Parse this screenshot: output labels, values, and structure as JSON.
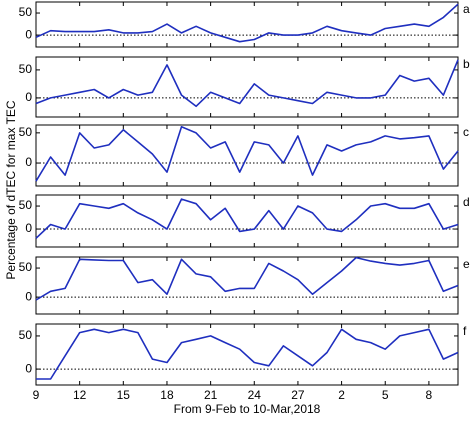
{
  "chart_data": [
    {
      "type": "line",
      "label": "a",
      "ylabel": "Percentage of dTEC for max TEC",
      "color": "#1f2fbf",
      "ylim": [
        -27,
        75
      ],
      "yticks": [
        0,
        50
      ],
      "values": [
        -5,
        10,
        8,
        8,
        8,
        12,
        5,
        5,
        8,
        25,
        5,
        20,
        5,
        -5,
        -15,
        -10,
        5,
        0,
        0,
        5,
        20,
        10,
        5,
        0,
        15,
        20,
        25,
        20,
        40,
        70
      ]
    },
    {
      "type": "line",
      "label": "b",
      "color": "#1f2fbf",
      "ylim": [
        -34,
        73
      ],
      "yticks": [
        0,
        50
      ],
      "values": [
        -10,
        0,
        5,
        10,
        15,
        0,
        15,
        5,
        10,
        59,
        5,
        -15,
        10,
        0,
        -10,
        25,
        5,
        0,
        -5,
        -10,
        10,
        5,
        0,
        0,
        5,
        40,
        30,
        35,
        5,
        68
      ]
    },
    {
      "type": "line",
      "label": "c",
      "color": "#1f2fbf",
      "ylim": [
        -38,
        63
      ],
      "yticks": [
        0,
        50
      ],
      "values": [
        -30,
        10,
        -20,
        50,
        25,
        30,
        55,
        35,
        15,
        -15,
        60,
        50,
        25,
        35,
        -15,
        35,
        30,
        0,
        45,
        -20,
        30,
        20,
        30,
        35,
        45,
        40,
        42,
        45,
        -10,
        20
      ]
    },
    {
      "type": "line",
      "label": "d",
      "color": "#1f2fbf",
      "ylim": [
        -39,
        74
      ],
      "yticks": [
        0,
        50
      ],
      "values": [
        -20,
        10,
        0,
        55,
        50,
        45,
        55,
        35,
        20,
        0,
        65,
        55,
        20,
        45,
        -5,
        0,
        40,
        0,
        50,
        35,
        0,
        -5,
        20,
        50,
        55,
        45,
        45,
        55,
        0,
        10
      ]
    },
    {
      "type": "line",
      "label": "e",
      "color": "#1f2fbf",
      "ylim": [
        -29,
        69
      ],
      "yticks": [
        0,
        50
      ],
      "values": [
        -5,
        10,
        15,
        65,
        64,
        63,
        63,
        25,
        30,
        5,
        65,
        40,
        35,
        10,
        15,
        15,
        58,
        45,
        30,
        5,
        25,
        45,
        68,
        62,
        58,
        55,
        58,
        63,
        10,
        20
      ]
    },
    {
      "type": "line",
      "label": "f",
      "color": "#1f2fbf",
      "ylim": [
        -24,
        68
      ],
      "yticks": [
        0,
        50
      ],
      "xlabel": "From 9-Feb to 10-Mar,2018",
      "categories": [
        "9",
        null,
        null,
        "12",
        null,
        null,
        "15",
        null,
        null,
        "18",
        null,
        null,
        "21",
        null,
        null,
        "24",
        null,
        null,
        "27",
        null,
        null,
        "2",
        null,
        null,
        "5",
        null,
        null,
        "8",
        null,
        null
      ],
      "values": [
        -15,
        -15,
        20,
        55,
        60,
        55,
        60,
        55,
        15,
        10,
        40,
        45,
        50,
        40,
        30,
        10,
        5,
        35,
        20,
        5,
        25,
        60,
        45,
        40,
        30,
        50,
        55,
        60,
        15,
        25
      ]
    }
  ]
}
